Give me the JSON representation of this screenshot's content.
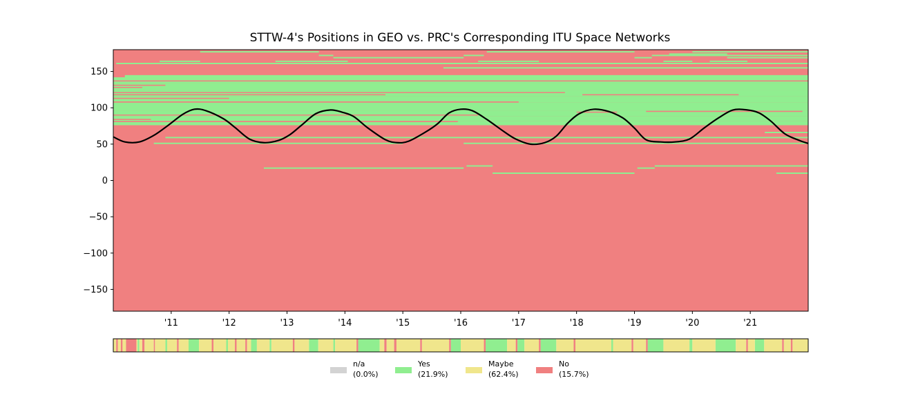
{
  "chart_data": {
    "type": "heatmap",
    "title": "STTW-4's Positions in GEO vs. PRC's Corresponding ITU Space Networks",
    "xlabel": "",
    "ylabel": "",
    "xlim": [
      2010.0,
      2022.0
    ],
    "ylim": [
      -180,
      180
    ],
    "x_ticks": [
      2011,
      2012,
      2013,
      2014,
      2015,
      2016,
      2017,
      2018,
      2019,
      2020,
      2021
    ],
    "x_tick_labels": [
      "'11",
      "'12",
      "'13",
      "'14",
      "'15",
      "'16",
      "'17",
      "'18",
      "'19",
      "'20",
      "'21"
    ],
    "y_ticks": [
      150,
      100,
      50,
      0,
      -50,
      -100,
      -150
    ],
    "y_tick_labels": [
      "150",
      "100",
      "50",
      "0",
      "−50",
      "−100",
      "−150"
    ],
    "grid": false,
    "background_category": "No",
    "colors": {
      "na": "#d3d3d3",
      "yes": "#90ee90",
      "maybe": "#f0e68c",
      "no": "#f08080",
      "position_line": "#000000",
      "frame": "#000000"
    },
    "yes_bands": [
      {
        "y0": 76,
        "y1": 82,
        "x0": 2010.0,
        "x1": 2022.0
      },
      {
        "y0": 82,
        "y1": 88,
        "x0": 2010.0,
        "x1": 2022.0
      },
      {
        "y0": 88,
        "y1": 96,
        "x0": 2010.0,
        "x1": 2022.0
      },
      {
        "y0": 96,
        "y1": 107,
        "x0": 2010.0,
        "x1": 2022.0
      },
      {
        "y0": 107,
        "y1": 116,
        "x0": 2010.0,
        "x1": 2022.0
      },
      {
        "y0": 116,
        "y1": 124,
        "x0": 2010.0,
        "x1": 2022.0
      },
      {
        "y0": 124,
        "y1": 134,
        "x0": 2010.0,
        "x1": 2022.0
      },
      {
        "y0": 134,
        "y1": 142,
        "x0": 2010.0,
        "x1": 2022.0
      },
      {
        "y0": 142,
        "y1": 145,
        "x0": 2010.2,
        "x1": 2022.0
      }
    ],
    "no_lines": [
      {
        "y": 84,
        "x0": 2010.0,
        "x1": 2010.65
      },
      {
        "y": 81,
        "x0": 2010.0,
        "x1": 2015.95
      },
      {
        "y": 90,
        "x0": 2010.0,
        "x1": 2016.3
      },
      {
        "y": 94,
        "x0": 2018.0,
        "x1": 2018.7
      },
      {
        "y": 95,
        "x0": 2019.2,
        "x1": 2021.9
      },
      {
        "y": 108,
        "x0": 2010.0,
        "x1": 2017.0
      },
      {
        "y": 113,
        "x0": 2010.0,
        "x1": 2012.0
      },
      {
        "y": 118,
        "x0": 2010.0,
        "x1": 2014.7
      },
      {
        "y": 118,
        "x0": 2018.1,
        "x1": 2020.8
      },
      {
        "y": 121,
        "x0": 2010.0,
        "x1": 2017.8
      },
      {
        "y": 128,
        "x0": 2010.0,
        "x1": 2010.5
      },
      {
        "y": 131,
        "x0": 2010.0,
        "x1": 2010.9
      },
      {
        "y": 137,
        "x0": 2010.0,
        "x1": 2022.0
      }
    ],
    "yes_lines": [
      {
        "y": 177,
        "x0": 2011.5,
        "x1": 2013.55
      },
      {
        "y": 177,
        "x0": 2016.45,
        "x1": 2019.0
      },
      {
        "y": 177,
        "x0": 2020.0,
        "x1": 2022.0
      },
      {
        "y": 174,
        "x0": 2019.6,
        "x1": 2020.6
      },
      {
        "y": 172,
        "x0": 2013.55,
        "x1": 2013.8
      },
      {
        "y": 172,
        "x0": 2016.05,
        "x1": 2016.4
      },
      {
        "y": 172,
        "x0": 2019.3,
        "x1": 2022.0
      },
      {
        "y": 169,
        "x0": 2013.8,
        "x1": 2016.05
      },
      {
        "y": 169,
        "x0": 2019.0,
        "x1": 2019.3
      },
      {
        "y": 169,
        "x0": 2020.6,
        "x1": 2022.0
      },
      {
        "y": 164,
        "x0": 2010.8,
        "x1": 2011.5
      },
      {
        "y": 164,
        "x0": 2012.8,
        "x1": 2014.05
      },
      {
        "y": 164,
        "x0": 2016.3,
        "x1": 2017.35
      },
      {
        "y": 164,
        "x0": 2019.5,
        "x1": 2020.0
      },
      {
        "y": 164,
        "x0": 2020.3,
        "x1": 2020.95
      },
      {
        "y": 161,
        "x0": 2010.05,
        "x1": 2022.0
      },
      {
        "y": 155,
        "x0": 2015.7,
        "x1": 2022.0
      },
      {
        "y": 66,
        "x0": 2021.25,
        "x1": 2022.0
      },
      {
        "y": 59,
        "x0": 2010.9,
        "x1": 2022.0
      },
      {
        "y": 51,
        "x0": 2010.7,
        "x1": 2015.0
      },
      {
        "y": 51,
        "x0": 2016.05,
        "x1": 2022.0
      },
      {
        "y": 20,
        "x0": 2016.1,
        "x1": 2016.55
      },
      {
        "y": 20,
        "x0": 2019.35,
        "x1": 2022.0
      },
      {
        "y": 17,
        "x0": 2012.6,
        "x1": 2016.05
      },
      {
        "y": 17,
        "x0": 2019.05,
        "x1": 2019.35
      },
      {
        "y": 10,
        "x0": 2016.55,
        "x1": 2019.0
      },
      {
        "y": 10,
        "x0": 2021.45,
        "x1": 2022.0
      }
    ],
    "position_series": {
      "name": "",
      "x": [
        2010.0,
        2010.2,
        2010.45,
        2010.7,
        2010.95,
        2011.2,
        2011.4,
        2011.6,
        2011.9,
        2012.1,
        2012.35,
        2012.6,
        2012.85,
        2013.05,
        2013.25,
        2013.5,
        2013.75,
        2013.95,
        2014.15,
        2014.4,
        2014.7,
        2014.9,
        2015.1,
        2015.4,
        2015.6,
        2015.8,
        2016.0,
        2016.2,
        2016.45,
        2016.75,
        2016.95,
        2017.2,
        2017.45,
        2017.65,
        2017.85,
        2018.05,
        2018.3,
        2018.55,
        2018.8,
        2019.0,
        2019.2,
        2019.45,
        2019.7,
        2019.95,
        2020.2,
        2020.45,
        2020.7,
        2020.95,
        2021.15,
        2021.35,
        2021.6,
        2021.85,
        2022.0
      ],
      "y": [
        60,
        53,
        53,
        62,
        76,
        91,
        98,
        96,
        85,
        73,
        57,
        52,
        55,
        63,
        76,
        92,
        97,
        94,
        88,
        72,
        56,
        52,
        54,
        67,
        78,
        93,
        98,
        96,
        84,
        67,
        57,
        50,
        52,
        61,
        79,
        92,
        98,
        95,
        86,
        72,
        56,
        53,
        53,
        57,
        72,
        86,
        97,
        97,
        93,
        82,
        64,
        55,
        51
      ]
    },
    "status_strip": {
      "segments": [
        {
          "x0": 2010.0,
          "x1": 2010.05,
          "status": "maybe"
        },
        {
          "x0": 2010.05,
          "x1": 2010.08,
          "status": "no"
        },
        {
          "x0": 2010.08,
          "x1": 2010.13,
          "status": "maybe"
        },
        {
          "x0": 2010.13,
          "x1": 2010.16,
          "status": "no"
        },
        {
          "x0": 2010.16,
          "x1": 2010.22,
          "status": "maybe"
        },
        {
          "x0": 2010.22,
          "x1": 2010.4,
          "status": "no"
        },
        {
          "x0": 2010.4,
          "x1": 2010.42,
          "status": "maybe"
        },
        {
          "x0": 2010.42,
          "x1": 2010.45,
          "status": "yes"
        },
        {
          "x0": 2010.45,
          "x1": 2010.5,
          "status": "maybe"
        },
        {
          "x0": 2010.5,
          "x1": 2010.54,
          "status": "no"
        },
        {
          "x0": 2010.54,
          "x1": 2010.7,
          "status": "maybe"
        },
        {
          "x0": 2010.7,
          "x1": 2010.72,
          "status": "no"
        },
        {
          "x0": 2010.72,
          "x1": 2010.9,
          "status": "maybe"
        },
        {
          "x0": 2010.9,
          "x1": 2010.93,
          "status": "yes"
        },
        {
          "x0": 2010.93,
          "x1": 2011.1,
          "status": "maybe"
        },
        {
          "x0": 2011.1,
          "x1": 2011.13,
          "status": "no"
        },
        {
          "x0": 2011.13,
          "x1": 2011.3,
          "status": "maybe"
        },
        {
          "x0": 2011.3,
          "x1": 2011.48,
          "status": "yes"
        },
        {
          "x0": 2011.48,
          "x1": 2011.7,
          "status": "maybe"
        },
        {
          "x0": 2011.7,
          "x1": 2011.73,
          "status": "no"
        },
        {
          "x0": 2011.73,
          "x1": 2011.95,
          "status": "maybe"
        },
        {
          "x0": 2011.95,
          "x1": 2011.98,
          "status": "yes"
        },
        {
          "x0": 2011.98,
          "x1": 2012.1,
          "status": "maybe"
        },
        {
          "x0": 2012.1,
          "x1": 2012.13,
          "status": "no"
        },
        {
          "x0": 2012.13,
          "x1": 2012.28,
          "status": "maybe"
        },
        {
          "x0": 2012.28,
          "x1": 2012.31,
          "status": "no"
        },
        {
          "x0": 2012.31,
          "x1": 2012.38,
          "status": "maybe"
        },
        {
          "x0": 2012.38,
          "x1": 2012.48,
          "status": "yes"
        },
        {
          "x0": 2012.48,
          "x1": 2012.7,
          "status": "maybe"
        },
        {
          "x0": 2012.7,
          "x1": 2012.73,
          "status": "yes"
        },
        {
          "x0": 2012.73,
          "x1": 2013.1,
          "status": "maybe"
        },
        {
          "x0": 2013.1,
          "x1": 2013.13,
          "status": "no"
        },
        {
          "x0": 2013.13,
          "x1": 2013.38,
          "status": "maybe"
        },
        {
          "x0": 2013.38,
          "x1": 2013.54,
          "status": "yes"
        },
        {
          "x0": 2013.54,
          "x1": 2013.8,
          "status": "maybe"
        },
        {
          "x0": 2013.8,
          "x1": 2013.83,
          "status": "yes"
        },
        {
          "x0": 2013.83,
          "x1": 2014.2,
          "status": "maybe"
        },
        {
          "x0": 2014.2,
          "x1": 2014.23,
          "status": "no"
        },
        {
          "x0": 2014.23,
          "x1": 2014.6,
          "status": "yes"
        },
        {
          "x0": 2014.6,
          "x1": 2014.68,
          "status": "maybe"
        },
        {
          "x0": 2014.68,
          "x1": 2014.72,
          "status": "no"
        },
        {
          "x0": 2014.72,
          "x1": 2014.85,
          "status": "maybe"
        },
        {
          "x0": 2014.85,
          "x1": 2014.89,
          "status": "no"
        },
        {
          "x0": 2014.89,
          "x1": 2015.3,
          "status": "maybe"
        },
        {
          "x0": 2015.3,
          "x1": 2015.33,
          "status": "no"
        },
        {
          "x0": 2015.33,
          "x1": 2015.8,
          "status": "maybe"
        },
        {
          "x0": 2015.8,
          "x1": 2015.83,
          "status": "no"
        },
        {
          "x0": 2015.83,
          "x1": 2016.0,
          "status": "yes"
        },
        {
          "x0": 2016.0,
          "x1": 2016.4,
          "status": "maybe"
        },
        {
          "x0": 2016.4,
          "x1": 2016.43,
          "status": "no"
        },
        {
          "x0": 2016.43,
          "x1": 2016.8,
          "status": "yes"
        },
        {
          "x0": 2016.8,
          "x1": 2016.95,
          "status": "maybe"
        },
        {
          "x0": 2016.95,
          "x1": 2016.98,
          "status": "no"
        },
        {
          "x0": 2016.98,
          "x1": 2017.1,
          "status": "yes"
        },
        {
          "x0": 2017.1,
          "x1": 2017.35,
          "status": "maybe"
        },
        {
          "x0": 2017.35,
          "x1": 2017.38,
          "status": "no"
        },
        {
          "x0": 2017.38,
          "x1": 2017.65,
          "status": "yes"
        },
        {
          "x0": 2017.65,
          "x1": 2017.95,
          "status": "maybe"
        },
        {
          "x0": 2017.95,
          "x1": 2017.98,
          "status": "no"
        },
        {
          "x0": 2017.98,
          "x1": 2018.6,
          "status": "maybe"
        },
        {
          "x0": 2018.6,
          "x1": 2018.63,
          "status": "yes"
        },
        {
          "x0": 2018.63,
          "x1": 2018.95,
          "status": "maybe"
        },
        {
          "x0": 2018.95,
          "x1": 2018.98,
          "status": "no"
        },
        {
          "x0": 2018.98,
          "x1": 2019.2,
          "status": "maybe"
        },
        {
          "x0": 2019.2,
          "x1": 2019.23,
          "status": "no"
        },
        {
          "x0": 2019.23,
          "x1": 2019.5,
          "status": "yes"
        },
        {
          "x0": 2019.5,
          "x1": 2019.95,
          "status": "maybe"
        },
        {
          "x0": 2019.95,
          "x1": 2020.0,
          "status": "yes"
        },
        {
          "x0": 2020.0,
          "x1": 2020.4,
          "status": "maybe"
        },
        {
          "x0": 2020.4,
          "x1": 2020.75,
          "status": "yes"
        },
        {
          "x0": 2020.75,
          "x1": 2020.93,
          "status": "maybe"
        },
        {
          "x0": 2020.93,
          "x1": 2020.96,
          "status": "no"
        },
        {
          "x0": 2020.96,
          "x1": 2021.08,
          "status": "maybe"
        },
        {
          "x0": 2021.08,
          "x1": 2021.24,
          "status": "yes"
        },
        {
          "x0": 2021.24,
          "x1": 2021.55,
          "status": "maybe"
        },
        {
          "x0": 2021.55,
          "x1": 2021.58,
          "status": "no"
        },
        {
          "x0": 2021.58,
          "x1": 2021.7,
          "status": "maybe"
        },
        {
          "x0": 2021.7,
          "x1": 2021.73,
          "status": "no"
        },
        {
          "x0": 2021.73,
          "x1": 2022.0,
          "status": "maybe"
        }
      ]
    },
    "legend": {
      "placement": "bottom-center",
      "items": [
        {
          "key": "na",
          "name": "n/a",
          "share": "(0.0%)"
        },
        {
          "key": "yes",
          "name": "Yes",
          "share": "(21.9%)"
        },
        {
          "key": "maybe",
          "name": "Maybe",
          "share": "(62.4%)"
        },
        {
          "key": "no",
          "name": "No",
          "share": "(15.7%)"
        }
      ]
    }
  }
}
